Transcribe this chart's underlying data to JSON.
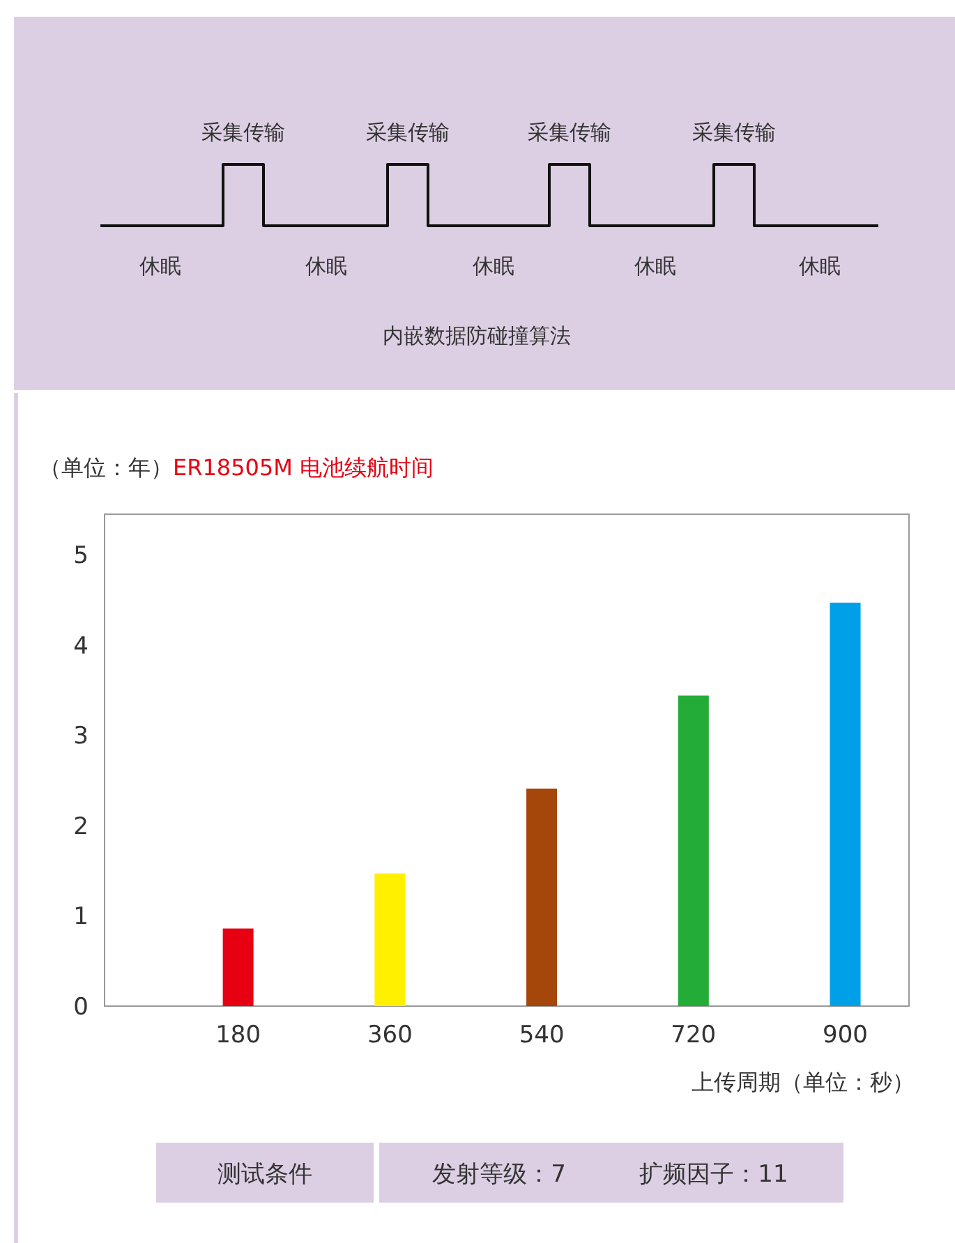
{
  "chart_data": {
    "type": "bar",
    "title": "ER18505M 电池续航时间",
    "ylabel": "（单位：年）",
    "xlabel": "上传周期（单位：秒）",
    "categories": [
      "180",
      "360",
      "540",
      "720",
      "900"
    ],
    "values": [
      0.86,
      1.47,
      2.41,
      3.44,
      4.47
    ],
    "colors": [
      "#e60012",
      "#fff000",
      "#a5460a",
      "#23ac38",
      "#00a0e9"
    ],
    "ylim": [
      0,
      5.45
    ],
    "yticks": [
      0,
      1,
      2,
      3,
      4,
      5
    ],
    "grid": false,
    "annotations": [
      "采集传输",
      "采集传输",
      "采集传输",
      "采集传输",
      "休眠",
      "休眠",
      "休眠",
      "休眠",
      "休眠",
      "内嵌数据防碰撞算法",
      "测试条件",
      "发射等级：7",
      "扩频因子：11"
    ]
  }
}
